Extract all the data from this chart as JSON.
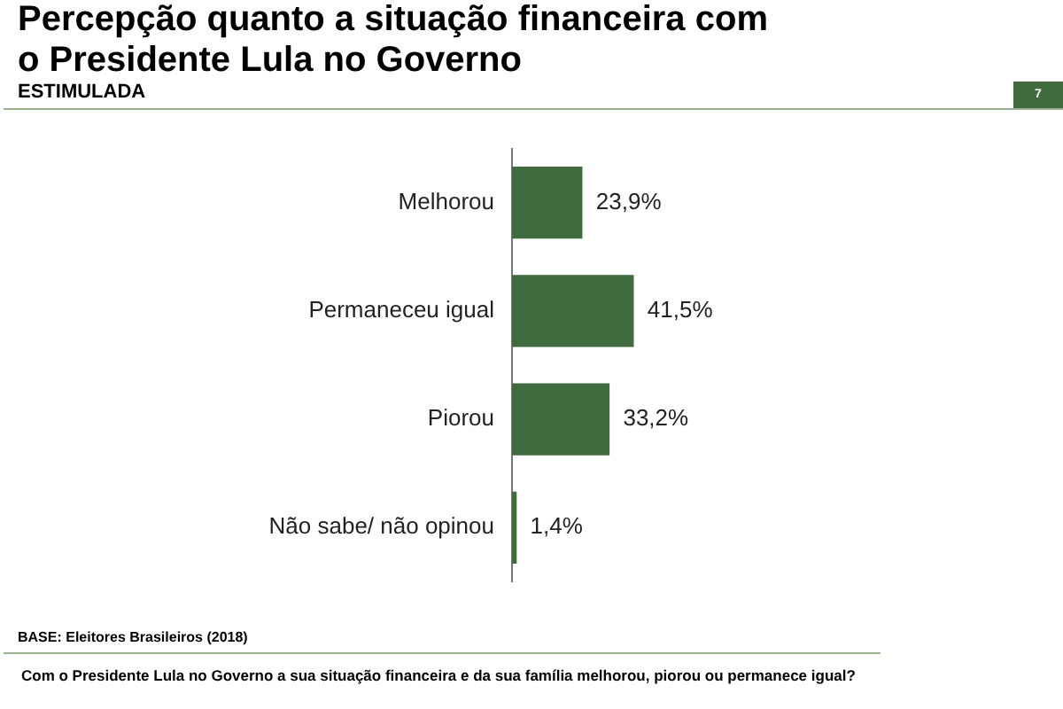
{
  "chart_data": {
    "type": "bar",
    "orientation": "horizontal",
    "title": "Percepção quanto a situação financeira com o Presidente Lula no Governo",
    "subtitle": "ESTIMULADA",
    "categories": [
      "Melhorou",
      "Permaneceu igual",
      "Piorou",
      "Não sabe/ não opinou"
    ],
    "values": [
      23.9,
      41.5,
      33.2,
      1.4
    ],
    "color": "#3f6b3f",
    "value_labels": [
      "23,9%",
      "41,5%",
      "33,2%",
      "1,4%"
    ],
    "legend": false,
    "tick_labels": "y",
    "annotations": [
      "7",
      "BASE: Eleitores Brasileiros (2018)",
      "Com o Presidente Lula no Governo a sua situação financeira e da sua família melhorou, piorou ou permanece igual?"
    ]
  }
}
